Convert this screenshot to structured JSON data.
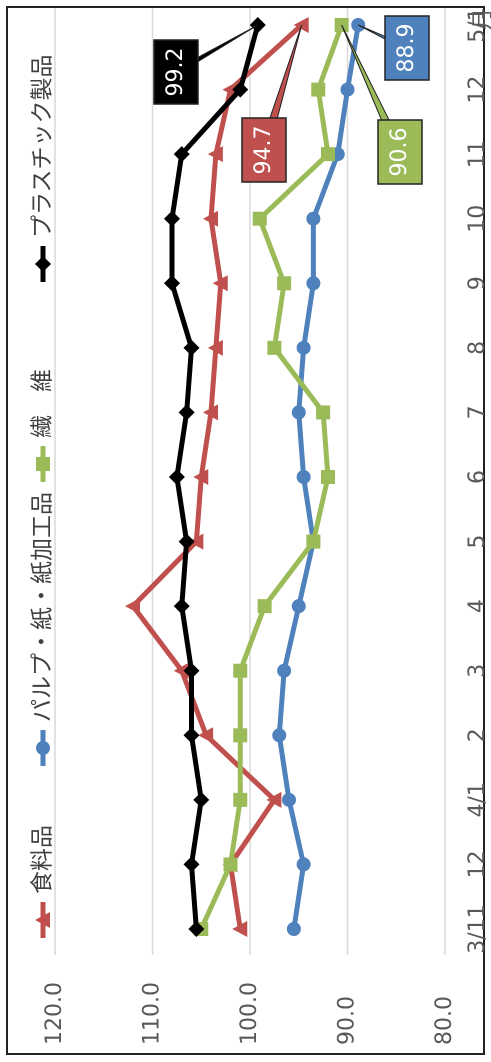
{
  "chart_data": {
    "type": "line",
    "orientation": "rotated-90-clockwise",
    "title": "",
    "xlabel": "",
    "ylabel": "",
    "x_unit_label": "月",
    "categories": [
      "3/11",
      "12",
      "4/1",
      "2",
      "3",
      "4",
      "5",
      "6",
      "7",
      "8",
      "9",
      "10",
      "11",
      "12",
      "5/1"
    ],
    "yticks": [
      "120.0",
      "110.0",
      "100.0",
      "90.0",
      "80.0"
    ],
    "ylim": [
      80,
      120
    ],
    "grid": true,
    "legend_position": "top",
    "series": [
      {
        "name": "食料品",
        "color": "#c0504d",
        "marker": "triangle",
        "values": [
          101.0,
          102.0,
          97.5,
          104.5,
          107.0,
          112.0,
          105.5,
          105.0,
          104.0,
          103.5,
          103.0,
          104.0,
          103.5,
          102.0,
          94.7
        ],
        "callout": ""
      },
      {
        "name": "パルプ・紙・紙加工品",
        "color": "#4f81bd",
        "marker": "circle",
        "values": [
          95.5,
          94.5,
          96.0,
          97.0,
          96.5,
          95.0,
          93.5,
          94.5,
          95.0,
          94.5,
          93.5,
          93.5,
          91.0,
          90.0,
          88.9
        ],
        "callout": "88.9"
      },
      {
        "name": "繊　維",
        "color": "#9bbb59",
        "marker": "square",
        "values": [
          105.0,
          102.0,
          101.0,
          101.0,
          101.0,
          98.5,
          93.5,
          92.0,
          92.5,
          97.5,
          96.5,
          99.0,
          92.0,
          93.0,
          90.6
        ],
        "callout": "90.6"
      },
      {
        "name": "プラスチック製品",
        "color": "#000000",
        "marker": "diamond",
        "values": [
          105.5,
          106.0,
          105.0,
          106.0,
          106.0,
          107.0,
          106.5,
          107.5,
          106.5,
          106.0,
          108.0,
          108.0,
          107.0,
          101.0,
          99.2
        ],
        "callout": "99.2"
      }
    ],
    "callouts": [
      {
        "series": 3,
        "text": "99.2",
        "bg": "#000000",
        "fg": "#ffffff"
      },
      {
        "series": 0,
        "text": "94.7",
        "bg": "#c0504d",
        "fg": "#ffffff"
      },
      {
        "series": 2,
        "text": "90.6",
        "bg": "#9bbb59",
        "fg": "#ffffff"
      },
      {
        "series": 1,
        "text": "88.9",
        "bg": "#4f81bd",
        "fg": "#ffffff"
      }
    ]
  }
}
